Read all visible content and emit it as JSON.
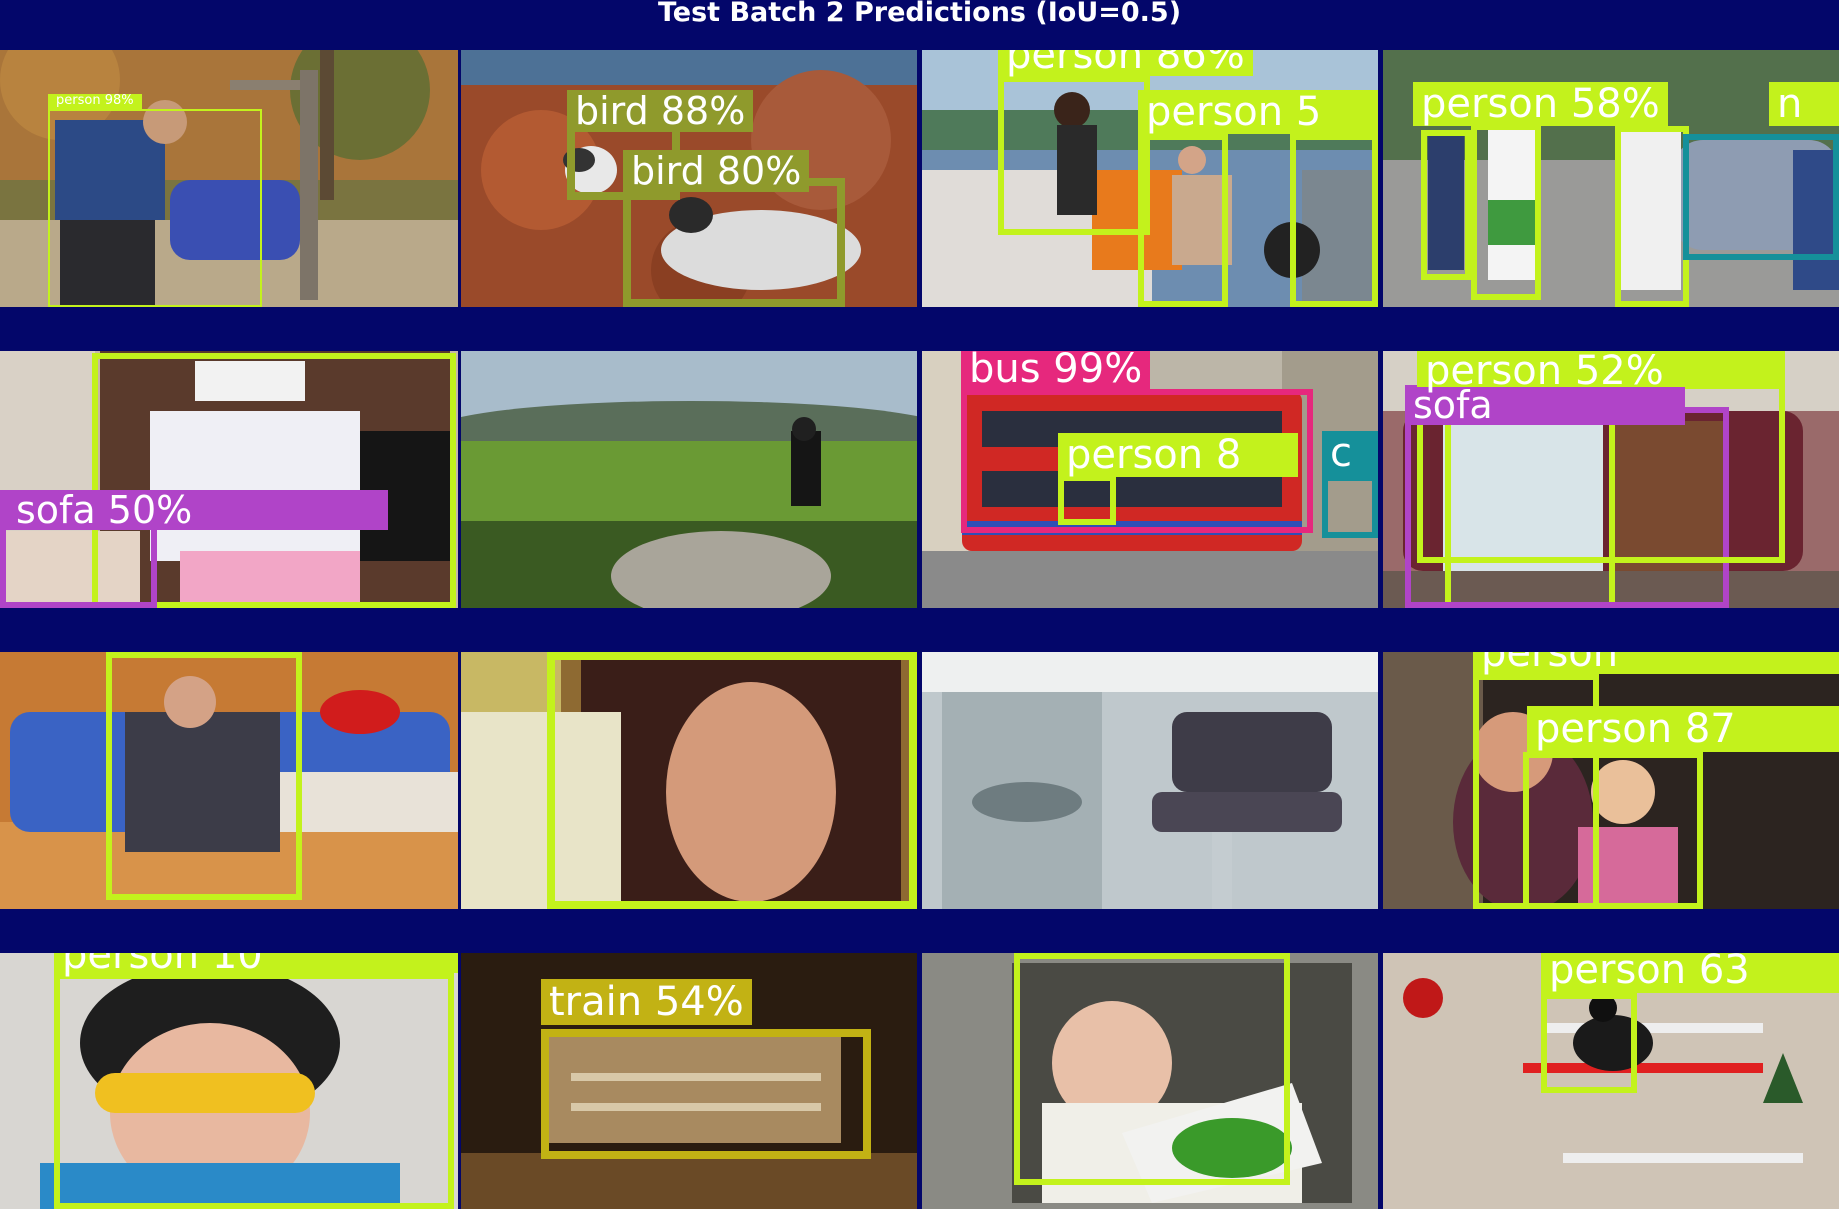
{
  "title": "Test Batch 2 Predictions (IoU=0.5)",
  "colors": {
    "background": "#03066a",
    "person": "#c3f21c",
    "bird": "#8f9a2c",
    "bus": "#e6287d",
    "sofa": "#b044c8",
    "car": "#15909a",
    "train": "#c2b214"
  },
  "grid": {
    "rows": 4,
    "cols": 4,
    "tiles": [
      {
        "scene": "hiker with backpack at trail sign in autumn woods",
        "detections": [
          {
            "label": "person 98%",
            "class": "person"
          }
        ]
      },
      {
        "scene": "gull on red rocks by the sea",
        "detections": [
          {
            "label": "bird 88%",
            "class": "bird"
          },
          {
            "label": "bird 80%",
            "class": "bird"
          }
        ]
      },
      {
        "scene": "people in a boat on a lake",
        "detections": [
          {
            "label": "person 86%",
            "class": "person"
          },
          {
            "label": "person 5",
            "class": "person"
          },
          {
            "label": "",
            "class": "person"
          }
        ]
      },
      {
        "scene": "group of people standing by a car",
        "detections": [
          {
            "label": "person 58%",
            "class": "person"
          },
          {
            "label": "n",
            "class": "person"
          },
          {
            "label": "",
            "class": "person"
          },
          {
            "label": "",
            "class": "person"
          },
          {
            "label": "",
            "class": "car"
          }
        ]
      },
      {
        "scene": "blindfolded girl on a sofa",
        "detections": [
          {
            "label": "sofa 50%",
            "class": "sofa"
          },
          {
            "label": "",
            "class": "person"
          }
        ]
      },
      {
        "scene": "person standing on a rock over green valley",
        "detections": []
      },
      {
        "scene": "red double decker bus on a city street",
        "detections": [
          {
            "label": "bus 99%",
            "class": "bus"
          },
          {
            "label": "person 8",
            "class": "person"
          },
          {
            "label": "c",
            "class": "car"
          }
        ]
      },
      {
        "scene": "two women sitting on a sofa",
        "detections": [
          {
            "label": "person 52%",
            "class": "person"
          },
          {
            "label": "sofa",
            "class": "sofa"
          },
          {
            "label": "",
            "class": "person"
          }
        ]
      },
      {
        "scene": "girl posing on a blue sofa",
        "detections": [
          {
            "label": "",
            "class": "person"
          }
        ]
      },
      {
        "scene": "woman reading a book",
        "detections": [
          {
            "label": "",
            "class": "person"
          }
        ]
      },
      {
        "scene": "chair and instruments in a ship cabin",
        "detections": []
      },
      {
        "scene": "smiling girl held by her mother",
        "detections": [
          {
            "label": "person 87",
            "class": "person"
          },
          {
            "label": "person",
            "class": "person"
          }
        ]
      },
      {
        "scene": "child wearing a bowl hat and goggles",
        "detections": [
          {
            "label": "person 10",
            "class": "person"
          }
        ]
      },
      {
        "scene": "wright flyer replica in a museum hall",
        "detections": [
          {
            "label": "train 54%",
            "class": "train"
          }
        ]
      },
      {
        "scene": "baby holding a picture book",
        "detections": [
          {
            "label": "",
            "class": "person"
          }
        ]
      },
      {
        "scene": "horse and rider jumping in an arena",
        "detections": [
          {
            "label": "person 63",
            "class": "person"
          }
        ]
      }
    ]
  }
}
